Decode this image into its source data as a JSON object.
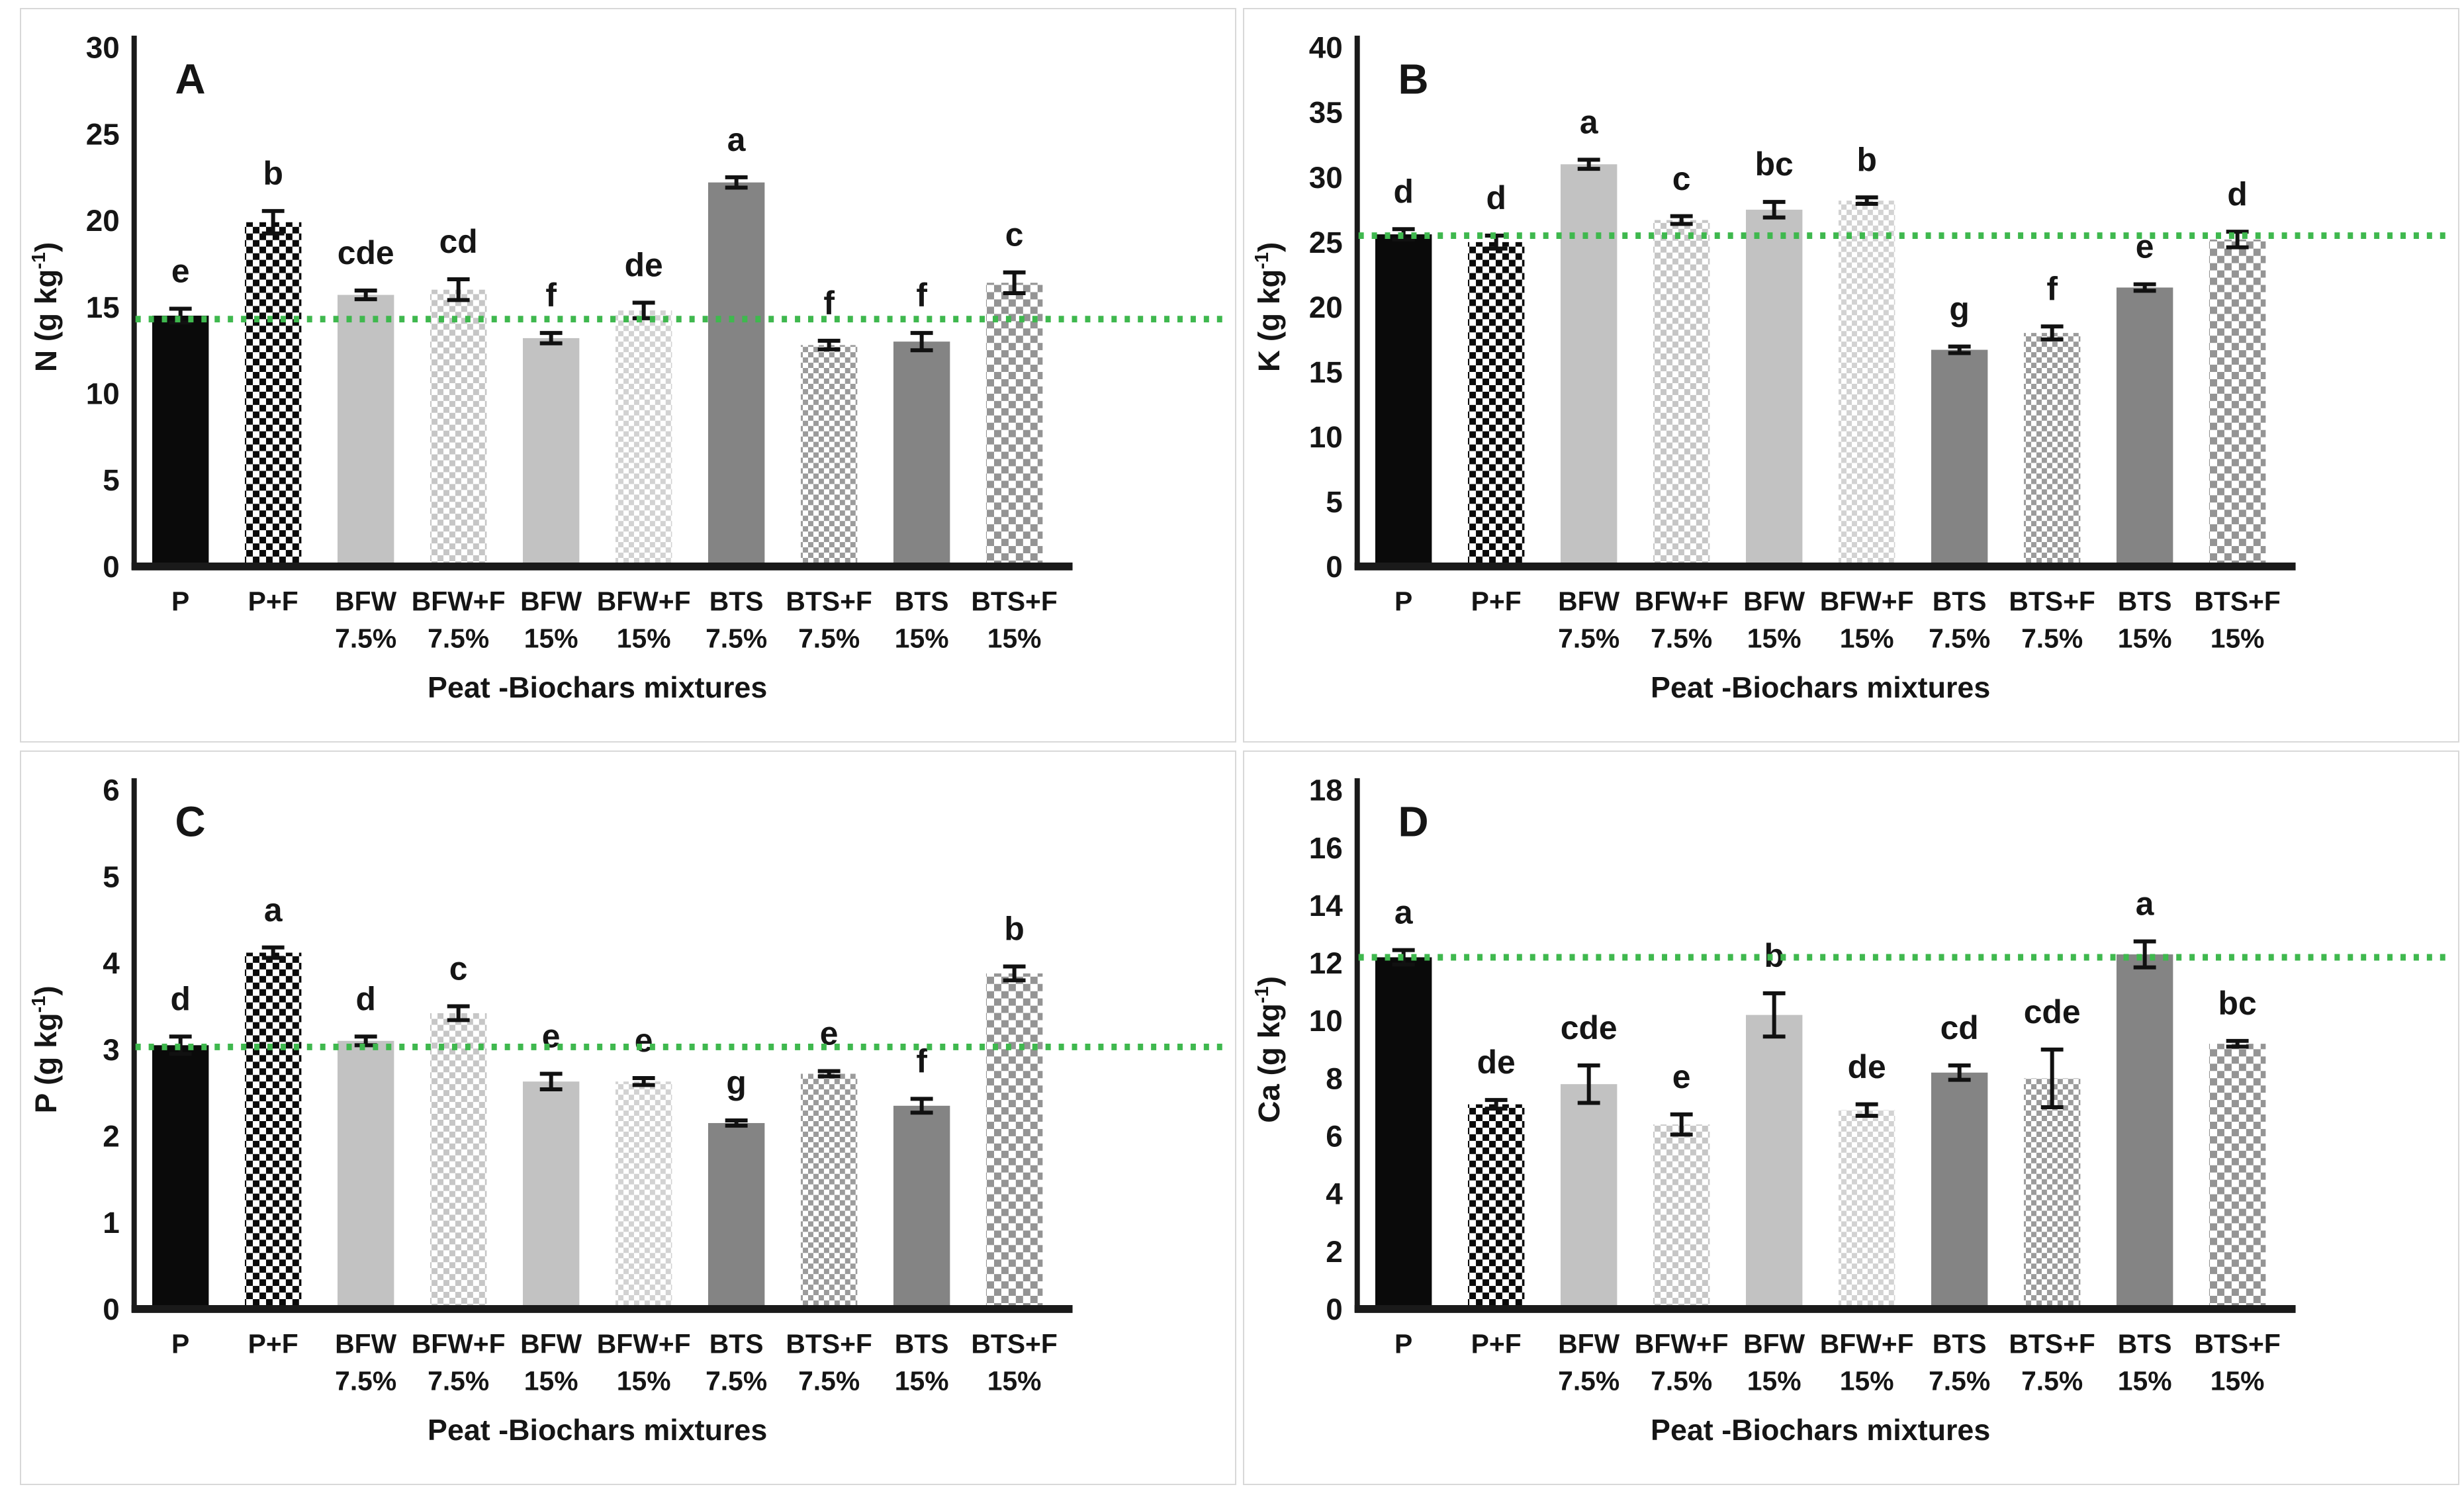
{
  "figure_title": "Peat-Biochars mixtures nutrient content panels",
  "shared": {
    "xlabel": "Peat -Biochars mixtures",
    "categories": [
      "P",
      "P+F",
      "BFW 7.5%",
      "BFW+F 7.5%",
      "BFW 15%",
      "BFW+F 15%",
      "BTS 7.5%",
      "BTS+F 7.5%",
      "BTS 15%",
      "BTS+F 15%"
    ]
  },
  "chart_data": [
    {
      "type": "bar",
      "panel_label": "A",
      "ylabel": "N (g kg⁻¹)",
      "xlabel": "Peat -Biochars mixtures",
      "ylim": [
        0,
        30
      ],
      "yticks": [
        0,
        5,
        10,
        15,
        20,
        25,
        30
      ],
      "grid": false,
      "legend": "none",
      "categories": [
        "P",
        "P+F",
        "BFW 7.5%",
        "BFW+F 7.5%",
        "BFW 15%",
        "BFW+F 15%",
        "BTS 7.5%",
        "BTS+F 7.5%",
        "BTS 15%",
        "BTS+F 15%"
      ],
      "values": [
        14.5,
        19.9,
        15.7,
        16.0,
        13.2,
        14.8,
        22.2,
        12.8,
        13.0,
        16.4
      ],
      "errors": [
        0.4,
        0.65,
        0.25,
        0.6,
        0.3,
        0.45,
        0.3,
        0.25,
        0.5,
        0.6
      ],
      "letters": [
        "e",
        "b",
        "cde",
        "cd",
        "f",
        "de",
        "a",
        "f",
        "f",
        "c"
      ],
      "reference_line": 14.3
    },
    {
      "type": "bar",
      "panel_label": "B",
      "ylabel": "K (g kg⁻¹)",
      "xlabel": "Peat -Biochars mixtures",
      "ylim": [
        0,
        40
      ],
      "yticks": [
        0,
        5,
        10,
        15,
        20,
        25,
        30,
        35,
        40
      ],
      "grid": false,
      "legend": "none",
      "categories": [
        "P",
        "P+F",
        "BFW 7.5%",
        "BFW+F 7.5%",
        "BFW 15%",
        "BFW+F 15%",
        "BTS 7.5%",
        "BTS+F 7.5%",
        "BTS 15%",
        "BTS+F 15%"
      ],
      "values": [
        25.6,
        25.0,
        31.0,
        26.7,
        27.5,
        28.2,
        16.7,
        18.0,
        21.5,
        25.2
      ],
      "errors": [
        0.4,
        0.5,
        0.35,
        0.3,
        0.6,
        0.25,
        0.25,
        0.5,
        0.25,
        0.6
      ],
      "letters": [
        "d",
        "d",
        "a",
        "c",
        "bc",
        "b",
        "g",
        "f",
        "e",
        "d"
      ],
      "reference_line": 25.5
    },
    {
      "type": "bar",
      "panel_label": "C",
      "ylabel": "P (g kg⁻¹)",
      "xlabel": "Peat -Biochars mixtures",
      "ylim": [
        0,
        6
      ],
      "yticks": [
        0,
        1,
        2,
        3,
        4,
        5,
        6
      ],
      "grid": false,
      "legend": "none",
      "categories": [
        "P",
        "P+F",
        "BFW 7.5%",
        "BFW+F 7.5%",
        "BFW 15%",
        "BFW+F 15%",
        "BTS 7.5%",
        "BTS+F 7.5%",
        "BTS 15%",
        "BTS+F 15%"
      ],
      "values": [
        3.05,
        4.12,
        3.1,
        3.42,
        2.63,
        2.63,
        2.15,
        2.72,
        2.35,
        3.88
      ],
      "errors": [
        0.1,
        0.06,
        0.05,
        0.08,
        0.09,
        0.04,
        0.03,
        0.03,
        0.08,
        0.08
      ],
      "letters": [
        "d",
        "a",
        "d",
        "c",
        "e",
        "e",
        "g",
        "e",
        "f",
        "b"
      ],
      "reference_line": 3.03
    },
    {
      "type": "bar",
      "panel_label": "D",
      "ylabel": "Ca (g kg⁻¹)",
      "xlabel": "Peat -Biochars mixtures",
      "ylim": [
        0,
        18
      ],
      "yticks": [
        0,
        2,
        4,
        6,
        8,
        10,
        12,
        14,
        16,
        18
      ],
      "grid": false,
      "legend": "none",
      "categories": [
        "P",
        "P+F",
        "BFW 7.5%",
        "BFW+F 7.5%",
        "BFW 15%",
        "BFW+F 15%",
        "BTS 7.5%",
        "BTS+F 7.5%",
        "BTS 15%",
        "BTS+F 15%"
      ],
      "values": [
        12.2,
        7.1,
        7.8,
        6.4,
        10.2,
        6.9,
        8.2,
        8.0,
        12.3,
        9.2
      ],
      "errors": [
        0.25,
        0.15,
        0.65,
        0.35,
        0.75,
        0.2,
        0.25,
        1.0,
        0.45,
        0.1
      ],
      "letters": [
        "a",
        "de",
        "cde",
        "e",
        "b",
        "de",
        "cd",
        "cde",
        "a",
        "bc"
      ],
      "reference_line": 12.2
    }
  ],
  "styles": {
    "bar_fills": [
      "solidBlack",
      "checkerBlack",
      "solidLight",
      "checkerLight",
      "solidLight",
      "checkerLighter",
      "solidDark",
      "checkerDark",
      "solidDark",
      "checkerDark2"
    ],
    "colors": {
      "solidBlack": "#0a0a0a",
      "solidLight": "#c2c2c2",
      "solidDark": "#848484",
      "axis": "#1a1a1a",
      "text": "#151515",
      "reference_green": "#3fb84e",
      "panel_border": "#d8d8d8",
      "error_bar": "#111111"
    },
    "patterns": {
      "checkerBlack": {
        "size": 10,
        "color": "#0a0a0a"
      },
      "checkerLight": {
        "size": 9,
        "color": "#c6c6c6"
      },
      "checkerLighter": {
        "size": 8,
        "color": "#d2d2d2"
      },
      "checkerDark": {
        "size": 8,
        "color": "#9b9b9b"
      },
      "checkerDark2": {
        "size": 11,
        "color": "#949494"
      }
    }
  }
}
